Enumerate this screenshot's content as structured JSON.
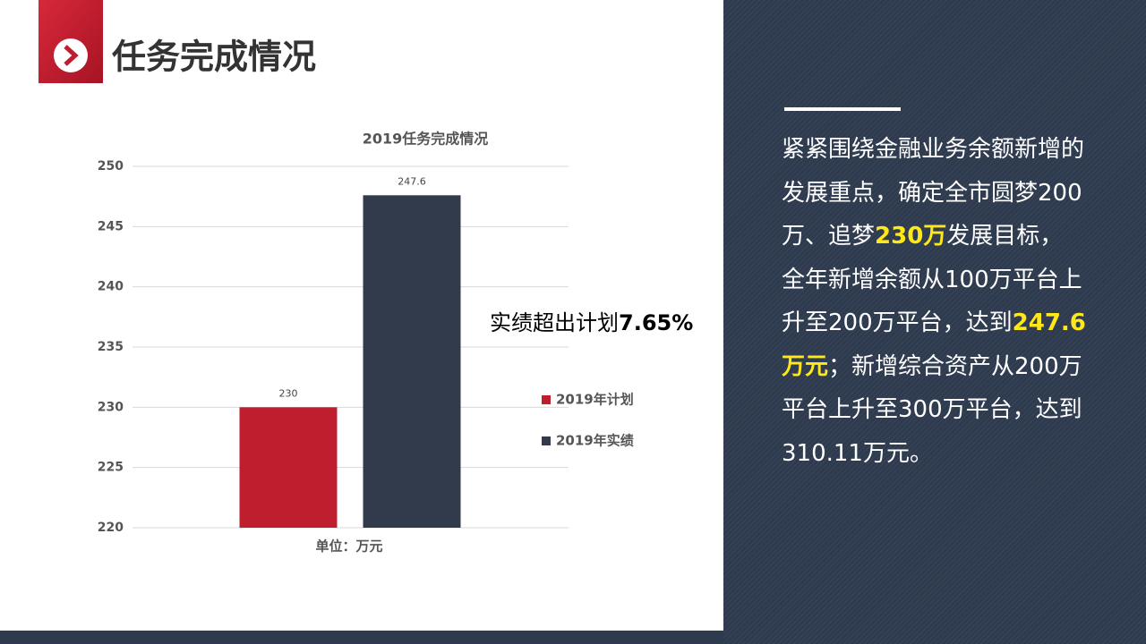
{
  "header": {
    "title": "任务完成情况"
  },
  "chart_data": {
    "type": "bar",
    "title": "2019任务完成情况",
    "x_label": "单位：万元",
    "categories": [
      null
    ],
    "series": [
      {
        "name": "2019年计划",
        "color": "#be1e2d",
        "values": [
          230
        ]
      },
      {
        "name": "2019年实绩",
        "color": "#323b4c",
        "values": [
          247.6
        ]
      }
    ],
    "ylim": [
      220,
      250
    ],
    "yticks": [
      220,
      225,
      230,
      235,
      240,
      245,
      250
    ],
    "grid": true,
    "legend": "right",
    "annotation": [
      "实绩超出计划",
      "7.65%"
    ]
  },
  "panel": {
    "paragraph": [
      {
        "text": "紧紧围绕金融业务余额新增的发展重点，确定全市圆梦200万、追梦",
        "highlight": false
      },
      {
        "text": "230万",
        "highlight": true
      },
      {
        "text": "发展目标，全年新增余额从100万平台上升至200万平台，达到",
        "highlight": false
      },
      {
        "text": "247.6万元",
        "highlight": true
      },
      {
        "text": "；新增综合资产从200万平台上升至300万平台，达到310.11万元。",
        "highlight": false
      }
    ]
  }
}
